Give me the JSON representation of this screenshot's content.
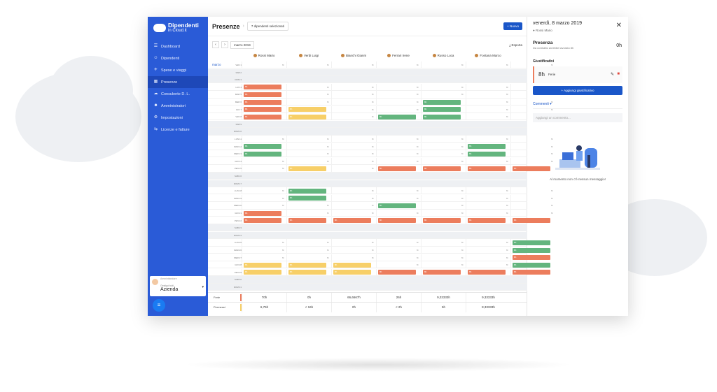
{
  "brand": {
    "name": "Dipendenti",
    "sub": "in Cloud.it"
  },
  "sidebar": {
    "items": [
      {
        "label": "Dashboard",
        "icon": "dashboard-icon",
        "glyph": "☰",
        "active": false
      },
      {
        "label": "Dipendenti",
        "icon": "users-icon",
        "glyph": "☺",
        "active": false
      },
      {
        "label": "Spese e viaggi",
        "icon": "plane-icon",
        "glyph": "✈",
        "active": false
      },
      {
        "label": "Presenze",
        "icon": "calendar-icon",
        "glyph": "▦",
        "active": true
      },
      {
        "label": "Consulente D. L.",
        "icon": "cloud-icon",
        "glyph": "☁",
        "active": false
      },
      {
        "label": "Amministratori",
        "icon": "admin-icon",
        "glyph": "☻",
        "active": false
      },
      {
        "label": "Impostazioni",
        "icon": "gear-icon",
        "glyph": "⚙",
        "active": false
      },
      {
        "label": "Licenze e fatture",
        "icon": "license-icon",
        "glyph": "⇆",
        "active": false
      }
    ],
    "user": {
      "role": "Amministratore",
      "label": "Gestisci tutti",
      "company": "Azienda"
    }
  },
  "header": {
    "title": "Presenze",
    "employees_select": "7 dipendenti selezionati",
    "new_label": "+ Nuovo"
  },
  "toolbar": {
    "month": "marzo 2019",
    "export_label": "Esporta",
    "prev": "‹",
    "next": "›"
  },
  "grid": {
    "month_label": "marzo",
    "employees": [
      "Rossi Mario",
      "Verdi Luigi",
      "Bianchi Gianni",
      "Ferrari Irene",
      "Russo Luca",
      "Fontana Marco",
      ""
    ],
    "days": [
      {
        "label": "VEN 1",
        "weekend": false,
        "cells": [
          "8h",
          "8h",
          "8h",
          "8h",
          "8h",
          "8h",
          "8h"
        ]
      },
      {
        "label": "SAB 2",
        "weekend": true,
        "cells": []
      },
      {
        "label": "DOM 3",
        "weekend": true,
        "cells": []
      },
      {
        "label": "LUN 4",
        "weekend": false,
        "cells": [
          "F",
          "8h",
          "8h",
          "8h",
          "8h",
          "8h",
          "8h"
        ]
      },
      {
        "label": "MAR 5",
        "weekend": false,
        "cells": [
          "F",
          "8h",
          "8h",
          "8h",
          "8h",
          "8h",
          "8h"
        ]
      },
      {
        "label": "MER 6",
        "weekend": false,
        "cells": [
          "F",
          "8h",
          "8h",
          "8h",
          "M",
          "8h",
          "8h"
        ]
      },
      {
        "label": "GIO 7",
        "weekend": false,
        "cells": [
          "F",
          "P",
          "8h",
          "8h",
          "M",
          "8h",
          "8h"
        ]
      },
      {
        "label": "VEN 8",
        "weekend": false,
        "cells": [
          "F",
          "P",
          "8h",
          "M",
          "M",
          "8h",
          "8h"
        ]
      },
      {
        "label": "SAB 9",
        "weekend": true,
        "cells": []
      },
      {
        "label": "DOM 10",
        "weekend": true,
        "cells": []
      },
      {
        "label": "LUN 11",
        "weekend": false,
        "cells": [
          "8h",
          "8h",
          "8h",
          "8h",
          "8h",
          "8h",
          "8h"
        ]
      },
      {
        "label": "MAR 12",
        "weekend": false,
        "cells": [
          "M",
          "8h",
          "8h",
          "8h",
          "8h",
          "M",
          "8h"
        ]
      },
      {
        "label": "MER 13",
        "weekend": false,
        "cells": [
          "M",
          "8h",
          "8h",
          "8h",
          "8h",
          "M",
          "8h"
        ]
      },
      {
        "label": "GIO 14",
        "weekend": false,
        "cells": [
          "8h",
          "8h",
          "8h",
          "8h",
          "8h",
          "8h",
          "8h"
        ]
      },
      {
        "label": "VEN 15",
        "weekend": false,
        "cells": [
          "8h",
          "P",
          "8h",
          "F",
          "F",
          "F",
          "F"
        ]
      },
      {
        "label": "SAB 16",
        "weekend": true,
        "cells": []
      },
      {
        "label": "DOM 17",
        "weekend": true,
        "cells": []
      },
      {
        "label": "LUN 18",
        "weekend": false,
        "cells": [
          "8h",
          "M",
          "8h",
          "8h",
          "8h",
          "8h",
          "8h"
        ]
      },
      {
        "label": "MAR 19",
        "weekend": false,
        "cells": [
          "8h",
          "M",
          "8h",
          "8h",
          "8h",
          "8h",
          "8h"
        ]
      },
      {
        "label": "MER 20",
        "weekend": false,
        "cells": [
          "8h",
          "8h",
          "8h",
          "M",
          "8h",
          "8h",
          "8h"
        ]
      },
      {
        "label": "GIO 21",
        "weekend": false,
        "cells": [
          "F",
          "8h",
          "8h",
          "8h",
          "8h",
          "8h",
          "8h"
        ]
      },
      {
        "label": "VEN 22",
        "weekend": false,
        "cells": [
          "F",
          "F",
          "F",
          "F",
          "F",
          "F",
          "F"
        ]
      },
      {
        "label": "SAB 23",
        "weekend": true,
        "cells": []
      },
      {
        "label": "DOM 24",
        "weekend": true,
        "cells": []
      },
      {
        "label": "LUN 25",
        "weekend": false,
        "cells": [
          "8h",
          "8h",
          "8h",
          "8h",
          "8h",
          "8h",
          "M"
        ]
      },
      {
        "label": "MAR 26",
        "weekend": false,
        "cells": [
          "8h",
          "8h",
          "8h",
          "8h",
          "8h",
          "8h",
          "M"
        ]
      },
      {
        "label": "MER 27",
        "weekend": false,
        "cells": [
          "8h",
          "8h",
          "8h",
          "8h",
          "8h",
          "8h",
          "F"
        ]
      },
      {
        "label": "GIO 28",
        "weekend": false,
        "cells": [
          "P",
          "P",
          "P",
          "8h",
          "8h",
          "8h",
          "M"
        ]
      },
      {
        "label": "VEN 29",
        "weekend": false,
        "cells": [
          "P",
          "P",
          "P",
          "F",
          "F",
          "F",
          "F"
        ]
      },
      {
        "label": "SAB 30",
        "weekend": true,
        "cells": []
      },
      {
        "label": "DOM 31",
        "weekend": true,
        "cells": []
      }
    ],
    "legend_codes": {
      "F": "Ferie",
      "P": "Permesso",
      "M": "Malattia"
    },
    "bar_label": "8h"
  },
  "totals": [
    {
      "label": "Ferie",
      "color": "#ec7d5d",
      "values": [
        "70h",
        "0h",
        "66,6667h",
        "26h",
        "9,33333h",
        "9,33333h"
      ]
    },
    {
      "label": "Permessi",
      "color": "#f7cf68",
      "values": [
        "6,75h",
        "< 16h",
        "0h",
        "< 2h",
        "5h",
        "8,33333h"
      ]
    }
  ],
  "panel": {
    "date": "venerdì, 8 marzo 2019",
    "employee": "Rossi Mario",
    "presence_title": "Presenza",
    "presence_sub": "Da contratto avrebbe lavorato 8h",
    "presence_hours": "0h",
    "justifications_title": "Giustificativi",
    "justification_hours": "8h",
    "justification_type": "Ferie",
    "add_label": "+ Aggiungi giustificativo",
    "comments_tab": "Commenti",
    "comment_placeholder": "Aggiungi un commento...",
    "empty_message": "Al momento non c'è nessun messaggio!"
  }
}
